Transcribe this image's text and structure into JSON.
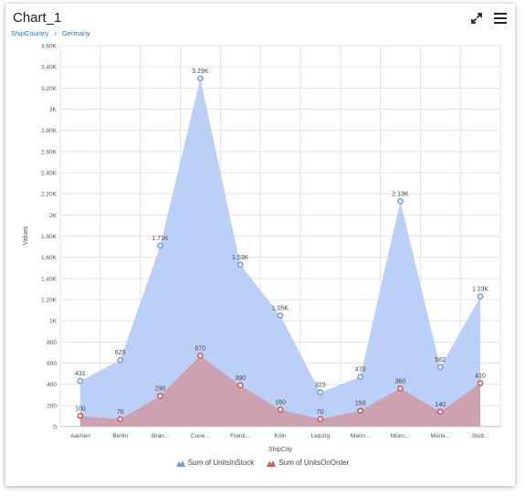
{
  "header": {
    "title": "Chart_1",
    "breadcrumb": [
      "ShipCountry",
      "Germany"
    ],
    "fullscreen_icon": "expand-icon",
    "menu_icon": "hamburger-menu-icon"
  },
  "colors": {
    "stock_fill": "#b7cdf7",
    "stock_marker": "#6e9de6",
    "order_fill": "#cf9aa3",
    "order_marker": "#d9534f",
    "grid": "#e3e3e3",
    "axis_text": "#555555"
  },
  "chart_data": {
    "type": "area",
    "categories": [
      "Aachen",
      "Berlin",
      "Bran...",
      "Cune...",
      "Frank...",
      "Köln",
      "Leipzig",
      "Mann...",
      "Münc...",
      "Müne...",
      "Stutt..."
    ],
    "series": [
      {
        "name": "Sum of UnitsInStock",
        "values": [
          431,
          629,
          1710,
          3290,
          1530,
          1050,
          323,
          470,
          2130,
          562,
          1230
        ],
        "labels": [
          "431",
          "629",
          "1.71K",
          "3.29K",
          "1.53K",
          "1.05K",
          "323",
          "470",
          "2.13K",
          "562",
          "1.23K"
        ]
      },
      {
        "name": "Sum of UnitsOnOrder",
        "values": [
          100,
          70,
          290,
          670,
          390,
          160,
          70,
          150,
          360,
          140,
          410
        ],
        "labels": [
          "100",
          "70",
          "290",
          "670",
          "390",
          "160",
          "70",
          "150",
          "360",
          "140",
          "410"
        ]
      }
    ],
    "xlabel": "ShipCity",
    "ylabel": "Values",
    "ylim": [
      0,
      3600
    ],
    "yticks": [
      0,
      200,
      400,
      600,
      800,
      1000,
      1200,
      1400,
      1600,
      1800,
      2000,
      2200,
      2400,
      2600,
      2800,
      3000,
      3200,
      3400,
      3600
    ],
    "ytick_labels": [
      "0",
      "200",
      "400",
      "600",
      "800",
      "1K",
      "1.20K",
      "1.40K",
      "1.60K",
      "1.80K",
      "2K",
      "2.20K",
      "2.40K",
      "2.60K",
      "2.80K",
      "3K",
      "3.20K",
      "3.40K",
      "3.60K"
    ],
    "grid": true,
    "legend_position": "bottom"
  }
}
